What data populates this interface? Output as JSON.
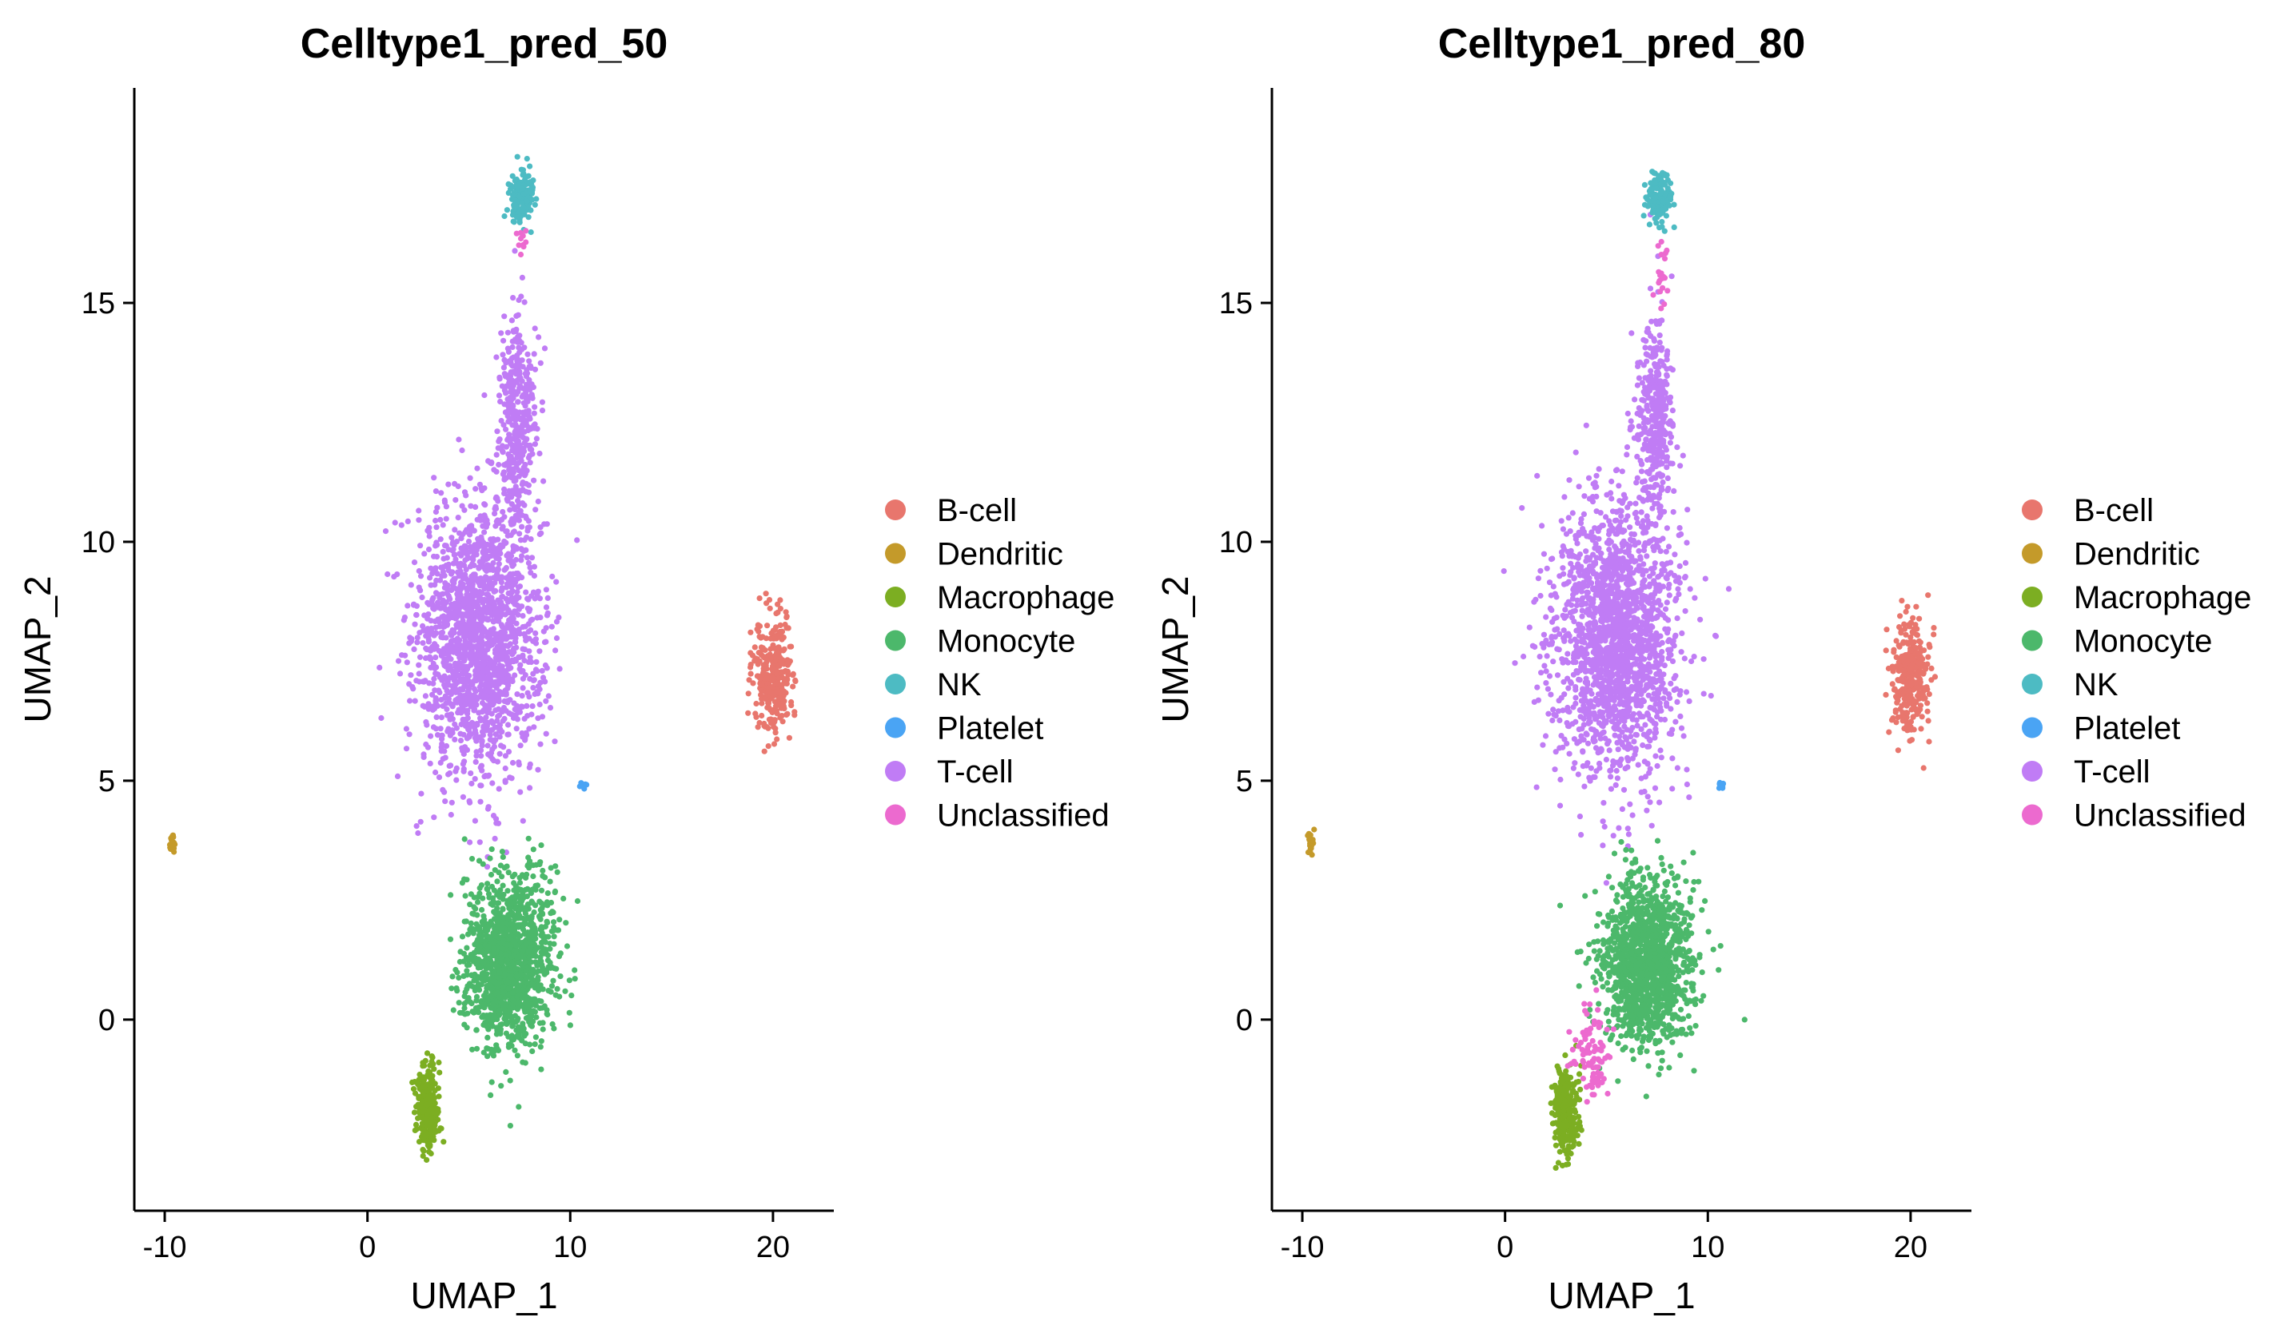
{
  "chart_data": [
    {
      "type": "scatter",
      "title": "Celltype1_pred_50",
      "xlabel": "UMAP_1",
      "ylabel": "UMAP_2",
      "xlim": [
        -11.5,
        23
      ],
      "ylim": [
        -4,
        19.5
      ],
      "xticks": [
        -10,
        0,
        10,
        20
      ],
      "yticks": [
        0,
        5,
        10,
        15
      ],
      "grid": false,
      "legend_position": "right",
      "categories": [
        "B-cell",
        "Dendritic",
        "Macrophage",
        "Monocyte",
        "NK",
        "Platelet",
        "T-cell",
        "Unclassified"
      ],
      "colors": [
        "#E8766D",
        "#C49A2A",
        "#7CAE22",
        "#4CB86B",
        "#4DBBC3",
        "#4AA4F4",
        "#C07CF5",
        "#EC6ACF"
      ],
      "clusters": [
        {
          "category": "T-cell",
          "center": [
            5.5,
            8.0
          ],
          "spread": [
            2.8,
            2.6
          ],
          "count": 1800
        },
        {
          "category": "T-cell",
          "center": [
            7.4,
            12.5
          ],
          "spread": [
            0.8,
            2.0
          ],
          "count": 380
        },
        {
          "category": "NK",
          "center": [
            7.6,
            17.2
          ],
          "spread": [
            0.55,
            0.5
          ],
          "count": 160
        },
        {
          "category": "Monocyte",
          "center": [
            7.0,
            1.2
          ],
          "spread": [
            2.0,
            1.6
          ],
          "count": 1300
        },
        {
          "category": "Macrophage",
          "center": [
            3.0,
            -1.9
          ],
          "spread": [
            0.55,
            0.8
          ],
          "count": 260
        },
        {
          "category": "B-cell",
          "center": [
            20.0,
            7.2
          ],
          "spread": [
            0.8,
            1.1
          ],
          "count": 330
        },
        {
          "category": "Dendritic",
          "center": [
            -9.6,
            3.7
          ],
          "spread": [
            0.15,
            0.2
          ],
          "count": 25
        },
        {
          "category": "Platelet",
          "center": [
            10.7,
            4.9
          ],
          "spread": [
            0.15,
            0.08
          ],
          "count": 10
        },
        {
          "category": "Unclassified",
          "center": [
            7.7,
            16.3
          ],
          "spread": [
            0.3,
            0.4
          ],
          "count": 10
        }
      ]
    },
    {
      "type": "scatter",
      "title": "Celltype1_pred_80",
      "xlabel": "UMAP_1",
      "ylabel": "UMAP_2",
      "xlim": [
        -11.5,
        23
      ],
      "ylim": [
        -4,
        19.5
      ],
      "xticks": [
        -10,
        0,
        10,
        20
      ],
      "yticks": [
        0,
        5,
        10,
        15
      ],
      "grid": false,
      "legend_position": "right",
      "categories": [
        "B-cell",
        "Dendritic",
        "Macrophage",
        "Monocyte",
        "NK",
        "Platelet",
        "T-cell",
        "Unclassified"
      ],
      "colors": [
        "#E8766D",
        "#C49A2A",
        "#7CAE22",
        "#4CB86B",
        "#4DBBC3",
        "#4AA4F4",
        "#C07CF5",
        "#EC6ACF"
      ],
      "clusters": [
        {
          "category": "T-cell",
          "center": [
            5.5,
            8.0
          ],
          "spread": [
            2.8,
            2.6
          ],
          "count": 1800
        },
        {
          "category": "T-cell",
          "center": [
            7.4,
            12.5
          ],
          "spread": [
            0.8,
            2.0
          ],
          "count": 380
        },
        {
          "category": "NK",
          "center": [
            7.6,
            17.2
          ],
          "spread": [
            0.55,
            0.5
          ],
          "count": 160
        },
        {
          "category": "Monocyte",
          "center": [
            7.0,
            1.2
          ],
          "spread": [
            2.0,
            1.6
          ],
          "count": 1300
        },
        {
          "category": "Macrophage",
          "center": [
            3.0,
            -1.9
          ],
          "spread": [
            0.55,
            0.8
          ],
          "count": 260
        },
        {
          "category": "B-cell",
          "center": [
            20.0,
            7.2
          ],
          "spread": [
            0.8,
            1.1
          ],
          "count": 330
        },
        {
          "category": "Dendritic",
          "center": [
            -9.6,
            3.7
          ],
          "spread": [
            0.15,
            0.2
          ],
          "count": 25
        },
        {
          "category": "Platelet",
          "center": [
            10.7,
            4.9
          ],
          "spread": [
            0.15,
            0.08
          ],
          "count": 10
        },
        {
          "category": "Unclassified",
          "center": [
            4.3,
            -0.8
          ],
          "spread": [
            0.8,
            1.0
          ],
          "count": 90
        },
        {
          "category": "Unclassified",
          "center": [
            7.7,
            15.5
          ],
          "spread": [
            0.3,
            0.8
          ],
          "count": 20
        }
      ]
    }
  ]
}
